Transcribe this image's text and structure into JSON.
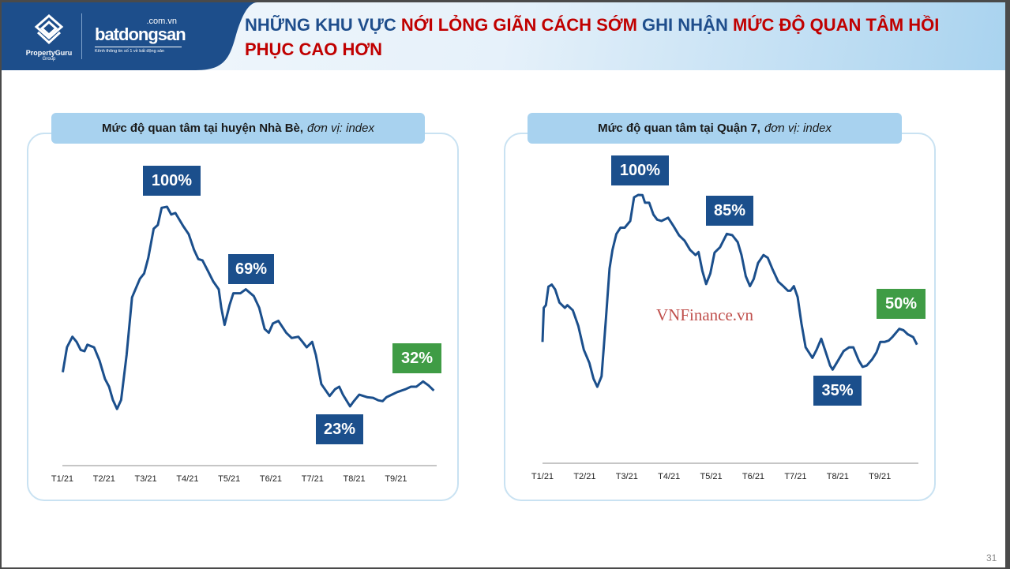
{
  "header": {
    "title_parts": [
      {
        "text": "NHỮNG KHU VỰC ",
        "color": "blue"
      },
      {
        "text": "NỚI LỎNG GIÃN CÁCH SỚM",
        "color": "red"
      },
      {
        "text": " GHI NHẬN ",
        "color": "blue"
      },
      {
        "text": "MỨC ĐỘ QUAN TÂM HỒI PHỤC CAO HƠN",
        "color": "red"
      }
    ],
    "logo1": "PropertyGuru",
    "logo1_sub": "Group",
    "logo2": "batdongsan",
    "logo2_domain": ".com.vn",
    "logo2_tagline": "Kênh thông tin số 1 về bất động sản"
  },
  "page_number": "31",
  "watermark": "VNFinance.vn",
  "colors": {
    "line": "#1b4f8c",
    "label_blue": "#1b4f8c",
    "label_green": "#3f9c45",
    "title_blue": "#1f4e8c",
    "title_red": "#c00000"
  },
  "chart_data": [
    {
      "type": "line",
      "title": "Mức độ quan tâm tại huyện Nhà Bè,",
      "title_unit": "đơn vị: index",
      "categories": [
        "T1/21",
        "T2/21",
        "T3/21",
        "T4/21",
        "T5/21",
        "T6/21",
        "T7/21",
        "T8/21",
        "T9/21"
      ],
      "x_unit": "months since T1/21",
      "ylim": [
        0,
        100
      ],
      "annotations": [
        {
          "text": "100%",
          "style": "blue"
        },
        {
          "text": "69%",
          "style": "blue"
        },
        {
          "text": "23%",
          "style": "blue"
        },
        {
          "text": "32%",
          "style": "green"
        }
      ],
      "points": [
        [
          0.01,
          36.1
        ],
        [
          0.11,
          45.7
        ],
        [
          0.24,
          49.8
        ],
        [
          0.34,
          47.8
        ],
        [
          0.44,
          44.7
        ],
        [
          0.53,
          44.2
        ],
        [
          0.6,
          46.7
        ],
        [
          0.76,
          45.7
        ],
        [
          0.89,
          40.6
        ],
        [
          1.02,
          33.5
        ],
        [
          1.12,
          30.5
        ],
        [
          1.21,
          25.4
        ],
        [
          1.31,
          21.9
        ],
        [
          1.41,
          25.4
        ],
        [
          1.54,
          42.7
        ],
        [
          1.67,
          65.0
        ],
        [
          1.86,
          72.2
        ],
        [
          1.96,
          74.2
        ],
        [
          2.06,
          80.3
        ],
        [
          2.19,
          91.5
        ],
        [
          2.29,
          93.0
        ],
        [
          2.38,
          99.6
        ],
        [
          2.51,
          100
        ],
        [
          2.61,
          97.0
        ],
        [
          2.71,
          97.6
        ],
        [
          2.9,
          92.5
        ],
        [
          3.03,
          89.4
        ],
        [
          3.16,
          83.3
        ],
        [
          3.26,
          79.8
        ],
        [
          3.36,
          79.3
        ],
        [
          3.49,
          75.2
        ],
        [
          3.62,
          71.1
        ],
        [
          3.75,
          68.1
        ],
        [
          3.81,
          61.0
        ],
        [
          3.89,
          54.4
        ],
        [
          4.01,
          62.0
        ],
        [
          4.1,
          66.6
        ],
        [
          4.27,
          66.6
        ],
        [
          4.4,
          68.1
        ],
        [
          4.59,
          65.5
        ],
        [
          4.72,
          61.0
        ],
        [
          4.85,
          52.8
        ],
        [
          4.95,
          51.3
        ],
        [
          5.05,
          54.9
        ],
        [
          5.18,
          55.9
        ],
        [
          5.37,
          51.3
        ],
        [
          5.5,
          49.3
        ],
        [
          5.66,
          49.8
        ],
        [
          5.76,
          47.8
        ],
        [
          5.86,
          45.7
        ],
        [
          5.99,
          47.8
        ],
        [
          6.08,
          42.7
        ],
        [
          6.21,
          31.5
        ],
        [
          6.41,
          26.9
        ],
        [
          6.54,
          29.5
        ],
        [
          6.64,
          30.5
        ],
        [
          6.73,
          27.4
        ],
        [
          6.9,
          22.9
        ],
        [
          6.99,
          24.9
        ],
        [
          7.12,
          27.4
        ],
        [
          7.32,
          26.4
        ],
        [
          7.45,
          26.2
        ],
        [
          7.58,
          25.2
        ],
        [
          7.68,
          24.9
        ],
        [
          7.77,
          26.4
        ],
        [
          7.9,
          27.4
        ],
        [
          8.03,
          28.4
        ],
        [
          8.23,
          29.5
        ],
        [
          8.36,
          30.5
        ],
        [
          8.49,
          30.5
        ],
        [
          8.65,
          32.5
        ],
        [
          8.78,
          31.0
        ],
        [
          8.91,
          29.0
        ]
      ]
    },
    {
      "type": "line",
      "title": "Mức độ quan tâm tại Quận 7,",
      "title_unit": "đơn vị: index",
      "categories": [
        "T1/21",
        "T2/21",
        "T3/21",
        "T4/21",
        "T5/21",
        "T6/21",
        "T7/21",
        "T8/21",
        "T9/21"
      ],
      "x_unit": "months since T1/21",
      "ylim": [
        0,
        100
      ],
      "annotations": [
        {
          "text": "100%",
          "style": "blue"
        },
        {
          "text": "85%",
          "style": "blue"
        },
        {
          "text": "35%",
          "style": "blue"
        },
        {
          "text": "50%",
          "style": "green"
        }
      ],
      "points": [
        [
          0,
          45.2
        ],
        [
          0.03,
          57.9
        ],
        [
          0.08,
          58.9
        ],
        [
          0.14,
          65.8
        ],
        [
          0.22,
          66.6
        ],
        [
          0.3,
          64.8
        ],
        [
          0.4,
          59.9
        ],
        [
          0.53,
          57.9
        ],
        [
          0.59,
          58.9
        ],
        [
          0.72,
          57.0
        ],
        [
          0.85,
          51.1
        ],
        [
          0.98,
          42.3
        ],
        [
          1.11,
          37.4
        ],
        [
          1.21,
          31.5
        ],
        [
          1.3,
          28.5
        ],
        [
          1.4,
          32.4
        ],
        [
          1.5,
          53.0
        ],
        [
          1.59,
          72.6
        ],
        [
          1.66,
          79.5
        ],
        [
          1.75,
          85.4
        ],
        [
          1.85,
          87.8
        ],
        [
          1.95,
          87.8
        ],
        [
          2.08,
          90.3
        ],
        [
          2.17,
          99.1
        ],
        [
          2.27,
          100
        ],
        [
          2.37,
          99.9
        ],
        [
          2.43,
          97.1
        ],
        [
          2.53,
          97.1
        ],
        [
          2.63,
          92.7
        ],
        [
          2.72,
          90.8
        ],
        [
          2.82,
          90.3
        ],
        [
          2.98,
          91.5
        ],
        [
          3.11,
          88.3
        ],
        [
          3.24,
          84.9
        ],
        [
          3.37,
          82.9
        ],
        [
          3.5,
          79.5
        ],
        [
          3.63,
          77.6
        ],
        [
          3.7,
          78.7
        ],
        [
          3.79,
          71.7
        ],
        [
          3.88,
          66.8
        ],
        [
          3.98,
          70.7
        ],
        [
          4.08,
          78.5
        ],
        [
          4.21,
          80.5
        ],
        [
          4.37,
          85.5
        ],
        [
          4.5,
          85.0
        ],
        [
          4.63,
          82.4
        ],
        [
          4.72,
          77.6
        ],
        [
          4.82,
          69.7
        ],
        [
          4.92,
          66.0
        ],
        [
          5.01,
          68.7
        ],
        [
          5.11,
          74.6
        ],
        [
          5.24,
          77.6
        ],
        [
          5.34,
          76.6
        ],
        [
          5.46,
          72.1
        ],
        [
          5.59,
          67.7
        ],
        [
          5.69,
          66.3
        ],
        [
          5.82,
          64.3
        ],
        [
          5.88,
          64.3
        ],
        [
          5.96,
          66.0
        ],
        [
          6.05,
          61.9
        ],
        [
          6.14,
          52.1
        ],
        [
          6.24,
          43.2
        ],
        [
          6.4,
          39.3
        ],
        [
          6.5,
          42.3
        ],
        [
          6.61,
          46.4
        ],
        [
          6.72,
          41.3
        ],
        [
          6.82,
          36.4
        ],
        [
          6.88,
          34.9
        ],
        [
          7.01,
          38.3
        ],
        [
          7.14,
          41.8
        ],
        [
          7.27,
          43.2
        ],
        [
          7.37,
          43.2
        ],
        [
          7.5,
          38.3
        ],
        [
          7.59,
          35.9
        ],
        [
          7.69,
          36.4
        ],
        [
          7.82,
          38.8
        ],
        [
          7.92,
          41.3
        ],
        [
          8.01,
          45.2
        ],
        [
          8.11,
          45.2
        ],
        [
          8.21,
          45.7
        ],
        [
          8.3,
          47.1
        ],
        [
          8.46,
          50.1
        ],
        [
          8.56,
          49.6
        ],
        [
          8.66,
          48.1
        ],
        [
          8.79,
          47.0
        ],
        [
          8.88,
          44.2
        ]
      ]
    }
  ]
}
